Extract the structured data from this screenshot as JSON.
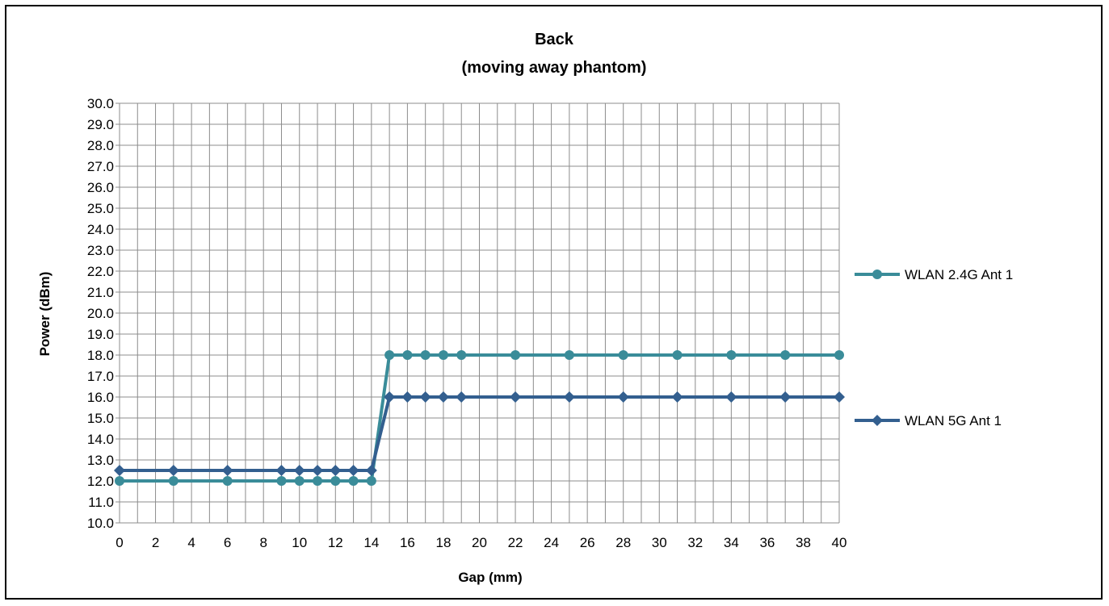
{
  "chart_data": {
    "type": "line",
    "title": [
      "Back",
      "(moving away phantom)"
    ],
    "xlabel": "Gap (mm)",
    "ylabel": "Power (dBm)",
    "ylim": [
      10,
      30
    ],
    "y_step": 1,
    "xlim": [
      0,
      40
    ],
    "x_ticks": [
      0,
      2,
      4,
      6,
      8,
      10,
      12,
      14,
      16,
      18,
      20,
      22,
      24,
      26,
      28,
      30,
      32,
      34,
      36,
      38,
      40
    ],
    "y_tick_format": "one-decimal",
    "grid": true,
    "legend_position": "right",
    "series": [
      {
        "name": "WLAN 2.4G Ant 1",
        "color": "#3a8c99",
        "marker": "circle",
        "x": [
          0,
          3,
          6,
          9,
          10,
          11,
          12,
          13,
          14,
          15,
          16,
          17,
          18,
          19,
          22,
          25,
          28,
          31,
          34,
          37,
          40
        ],
        "y": [
          12.0,
          12.0,
          12.0,
          12.0,
          12.0,
          12.0,
          12.0,
          12.0,
          12.0,
          18.0,
          18.0,
          18.0,
          18.0,
          18.0,
          18.0,
          18.0,
          18.0,
          18.0,
          18.0,
          18.0,
          18.0
        ]
      },
      {
        "name": "WLAN 5G Ant 1",
        "color": "#335f8f",
        "marker": "diamond",
        "x": [
          0,
          3,
          6,
          9,
          10,
          11,
          12,
          13,
          14,
          15,
          16,
          17,
          18,
          19,
          22,
          25,
          28,
          31,
          34,
          37,
          40
        ],
        "y": [
          12.5,
          12.5,
          12.5,
          12.5,
          12.5,
          12.5,
          12.5,
          12.5,
          12.5,
          16.0,
          16.0,
          16.0,
          16.0,
          16.0,
          16.0,
          16.0,
          16.0,
          16.0,
          16.0,
          16.0,
          16.0
        ]
      }
    ]
  }
}
